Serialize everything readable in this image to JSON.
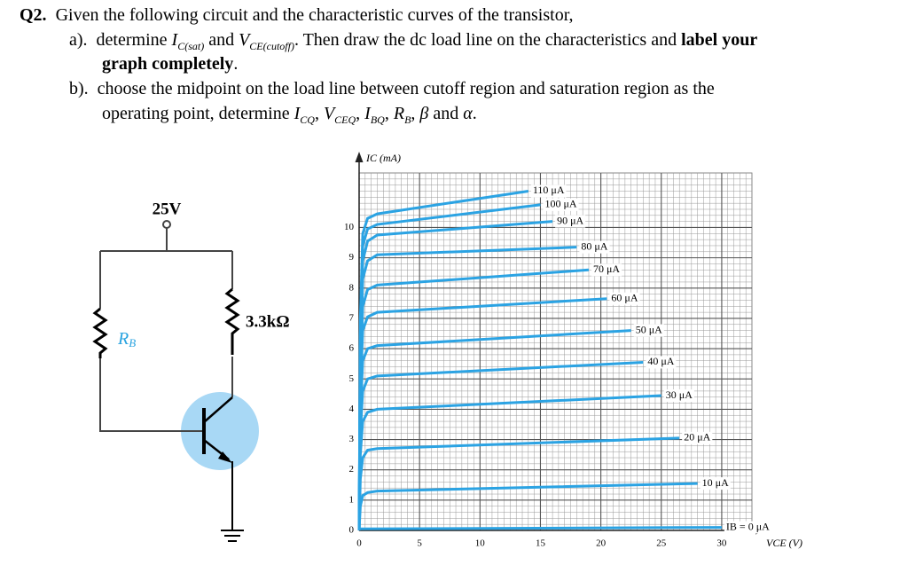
{
  "question": {
    "number": "Q2.",
    "intro": "Given the following circuit and the characteristic curves of the transistor,",
    "part_a": [
      "a).",
      "determine ",
      "I",
      "C(sat)",
      " and ",
      "V",
      "CE(cutoff)",
      ". Then draw the dc load line on the characteristics and ",
      "label your",
      "graph completely",
      "."
    ],
    "part_b": [
      "b).",
      "choose the midpoint on the load line between cutoff region and saturation region as the",
      "operating point, determine ",
      "I",
      "CQ",
      ", ",
      "V",
      "CEQ",
      ", ",
      "I",
      "BQ",
      ", ",
      "R",
      "B",
      ", ",
      "β",
      " and ",
      "α",
      "."
    ]
  },
  "circuit": {
    "supply": "25V",
    "rb": "R",
    "rb_sub": "B",
    "rc": "3.3kΩ"
  },
  "chart_data": {
    "type": "line",
    "x_label": "VCE (V)",
    "y_label": "IC (mA)",
    "xlim": [
      0,
      32.5
    ],
    "ylim": [
      0,
      11.8
    ],
    "xticks": [
      0,
      5,
      10,
      15,
      20,
      25,
      30
    ],
    "yticks": [
      0,
      1,
      2,
      3,
      4,
      5,
      6,
      7,
      8,
      9,
      10
    ],
    "grid": true,
    "minor_grid": [
      0.5,
      0.2
    ],
    "series": [
      {
        "name": "110 μA",
        "color": "#2ba3e3",
        "x": [
          0,
          0.1,
          0.3,
          0.7,
          1.5,
          14
        ],
        "values": [
          0,
          7,
          9.8,
          10.3,
          10.45,
          11.2
        ]
      },
      {
        "name": "100 μA",
        "color": "#2ba3e3",
        "x": [
          0,
          0.1,
          0.3,
          0.7,
          1.5,
          15
        ],
        "values": [
          0,
          6.5,
          9.4,
          9.95,
          10.1,
          10.75
        ]
      },
      {
        "name": "90 μA",
        "color": "#2ba3e3",
        "x": [
          0,
          0.1,
          0.3,
          0.7,
          1.5,
          16
        ],
        "values": [
          0,
          6,
          8.9,
          9.55,
          9.75,
          10.2
        ]
      },
      {
        "name": "80 μA",
        "color": "#2ba3e3",
        "x": [
          0,
          0.1,
          0.3,
          0.7,
          1.5,
          18
        ],
        "values": [
          0,
          5.5,
          8.3,
          8.9,
          9.1,
          9.35
        ]
      },
      {
        "name": "70 μA",
        "color": "#2ba3e3",
        "x": [
          0,
          0.1,
          0.3,
          0.7,
          1.5,
          19
        ],
        "values": [
          0,
          5,
          7.4,
          7.95,
          8.1,
          8.6
        ]
      },
      {
        "name": "60 μA",
        "color": "#2ba3e3",
        "x": [
          0,
          0.1,
          0.3,
          0.7,
          1.5,
          20.5
        ],
        "values": [
          0,
          4.5,
          6.6,
          7.05,
          7.2,
          7.65
        ]
      },
      {
        "name": "50 μA",
        "color": "#2ba3e3",
        "x": [
          0,
          0.1,
          0.3,
          0.7,
          1.5,
          22.5
        ],
        "values": [
          0,
          3.8,
          5.6,
          6,
          6.1,
          6.6
        ]
      },
      {
        "name": "40 μA",
        "color": "#2ba3e3",
        "x": [
          0,
          0.1,
          0.3,
          0.7,
          1.5,
          23.5
        ],
        "values": [
          0,
          3.2,
          4.6,
          5,
          5.1,
          5.55
        ]
      },
      {
        "name": "30 μA",
        "color": "#2ba3e3",
        "x": [
          0,
          0.1,
          0.3,
          0.7,
          1.5,
          25
        ],
        "values": [
          0,
          2.5,
          3.6,
          3.9,
          4,
          4.45
        ]
      },
      {
        "name": "20 μA",
        "color": "#2ba3e3",
        "x": [
          0,
          0.1,
          0.3,
          0.7,
          1.5,
          26.5
        ],
        "values": [
          0,
          1.7,
          2.4,
          2.65,
          2.7,
          3.05
        ]
      },
      {
        "name": "10 μA",
        "color": "#2ba3e3",
        "x": [
          0,
          0.1,
          0.3,
          0.7,
          1.5,
          28
        ],
        "values": [
          0,
          0.8,
          1.15,
          1.25,
          1.3,
          1.55
        ]
      },
      {
        "name": "IB = 0 μA",
        "color": "#2ba3e3",
        "x": [
          0,
          30
        ],
        "values": [
          0.05,
          0.1
        ]
      }
    ]
  }
}
